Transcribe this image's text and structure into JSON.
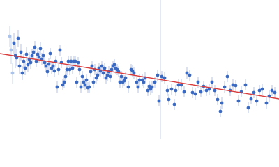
{
  "chart_data": {
    "type": "scatter",
    "xlim": [
      0,
      400
    ],
    "ylim": [
      200,
      0
    ],
    "reference_x": 230,
    "reference_color": "#c8d2e6",
    "fit": {
      "color": "#d93b3b",
      "x": [
        0,
        400
      ],
      "y": [
        77,
        142
      ]
    },
    "series": [
      {
        "color": "#a9c3ec",
        "error_color": "#c5d5f0",
        "x": [
          14,
          16,
          18
        ],
        "y": [
          52,
          72,
          105
        ],
        "error": [
          15,
          20,
          15
        ]
      },
      {
        "color": "#3a69c2",
        "error_color": "#b3c3e6",
        "x": [
          20,
          22,
          24,
          26,
          28,
          30,
          32,
          34,
          36,
          38,
          40,
          42,
          44,
          46,
          48,
          50,
          52,
          54,
          56,
          58,
          60,
          62,
          64,
          66,
          68,
          70,
          72,
          74,
          76,
          78,
          80,
          82,
          84,
          86,
          88,
          90,
          92,
          94,
          96,
          98,
          100,
          102,
          104,
          106,
          108,
          110,
          112,
          114,
          116,
          118,
          120,
          122,
          124,
          126,
          128,
          130,
          132,
          134,
          136,
          138,
          140,
          142,
          144,
          146,
          148,
          150,
          152,
          154,
          156,
          158,
          160,
          162,
          164,
          166,
          168,
          170,
          172,
          174,
          176,
          178,
          180,
          184,
          188,
          190,
          192,
          196,
          198,
          200,
          204,
          206,
          208,
          212,
          214,
          216,
          218,
          222,
          226,
          228,
          232,
          236,
          240,
          242,
          246,
          250,
          252,
          256,
          260,
          264,
          268,
          272,
          276,
          280,
          284,
          288,
          292,
          296,
          300,
          304,
          308,
          312,
          316,
          318,
          322,
          326,
          330,
          334,
          338,
          342,
          346,
          352,
          356,
          360,
          364,
          368,
          372,
          376,
          382,
          386,
          390,
          394
        ],
        "y": [
          62,
          80,
          83,
          55,
          95,
          75,
          105,
          88,
          98,
          78,
          93,
          85,
          90,
          80,
          75,
          68,
          88,
          78,
          82,
          70,
          85,
          80,
          90,
          95,
          103,
          92,
          77,
          98,
          95,
          102,
          88,
          125,
          100,
          72,
          90,
          122,
          118,
          110,
          100,
          88,
          100,
          88,
          98,
          88,
          88,
          118,
          90,
          100,
          125,
          110,
          118,
          122,
          115,
          126,
          125,
          103,
          95,
          118,
          100,
          112,
          108,
          98,
          102,
          95,
          105,
          98,
          112,
          108,
          103,
          110,
          100,
          95,
          93,
          98,
          100,
          103,
          118,
          110,
          118,
          116,
          112,
          125,
          100,
          102,
          105,
          118,
          125,
          115,
          115,
          118,
          112,
          130,
          124,
          128,
          125,
          118,
          108,
          145,
          110,
          112,
          130,
          143,
          128,
          150,
          130,
          122,
          122,
          132,
          105,
          108,
          133,
          135,
          118,
          132,
          124,
          130,
          128,
          118,
          130,
          143,
          160,
          148,
          125,
          110,
          130,
          122,
          123,
          145,
          132,
          122,
          155,
          142,
          133,
          145,
          130,
          128,
          148,
          138,
          130,
          133
        ],
        "error": [
          15,
          18,
          12,
          12,
          12,
          12,
          10,
          10,
          10,
          10,
          10,
          10,
          9,
          9,
          9,
          9,
          9,
          9,
          9,
          9,
          9,
          8,
          8,
          8,
          8,
          8,
          8,
          8,
          8,
          8,
          8,
          8,
          8,
          8,
          8,
          8,
          8,
          8,
          8,
          8,
          8,
          8,
          8,
          8,
          8,
          8,
          8,
          8,
          8,
          8,
          8,
          8,
          8,
          8,
          8,
          8,
          8,
          8,
          8,
          8,
          8,
          8,
          8,
          8,
          8,
          8,
          8,
          8,
          8,
          8,
          8,
          8,
          8,
          8,
          8,
          8,
          8,
          8,
          8,
          8,
          8,
          8,
          8,
          8,
          8,
          8,
          8,
          8,
          8,
          8,
          8,
          8,
          8,
          8,
          8,
          8,
          8,
          8,
          8,
          8,
          8,
          8,
          8,
          8,
          8,
          8,
          8,
          8,
          8,
          8,
          8,
          8,
          8,
          8,
          8,
          8,
          8,
          8,
          8,
          8,
          8,
          8,
          8,
          8,
          8,
          8,
          8,
          8,
          8,
          8,
          8,
          8,
          8,
          8,
          8,
          8,
          8,
          8,
          8,
          8
        ]
      }
    ]
  }
}
